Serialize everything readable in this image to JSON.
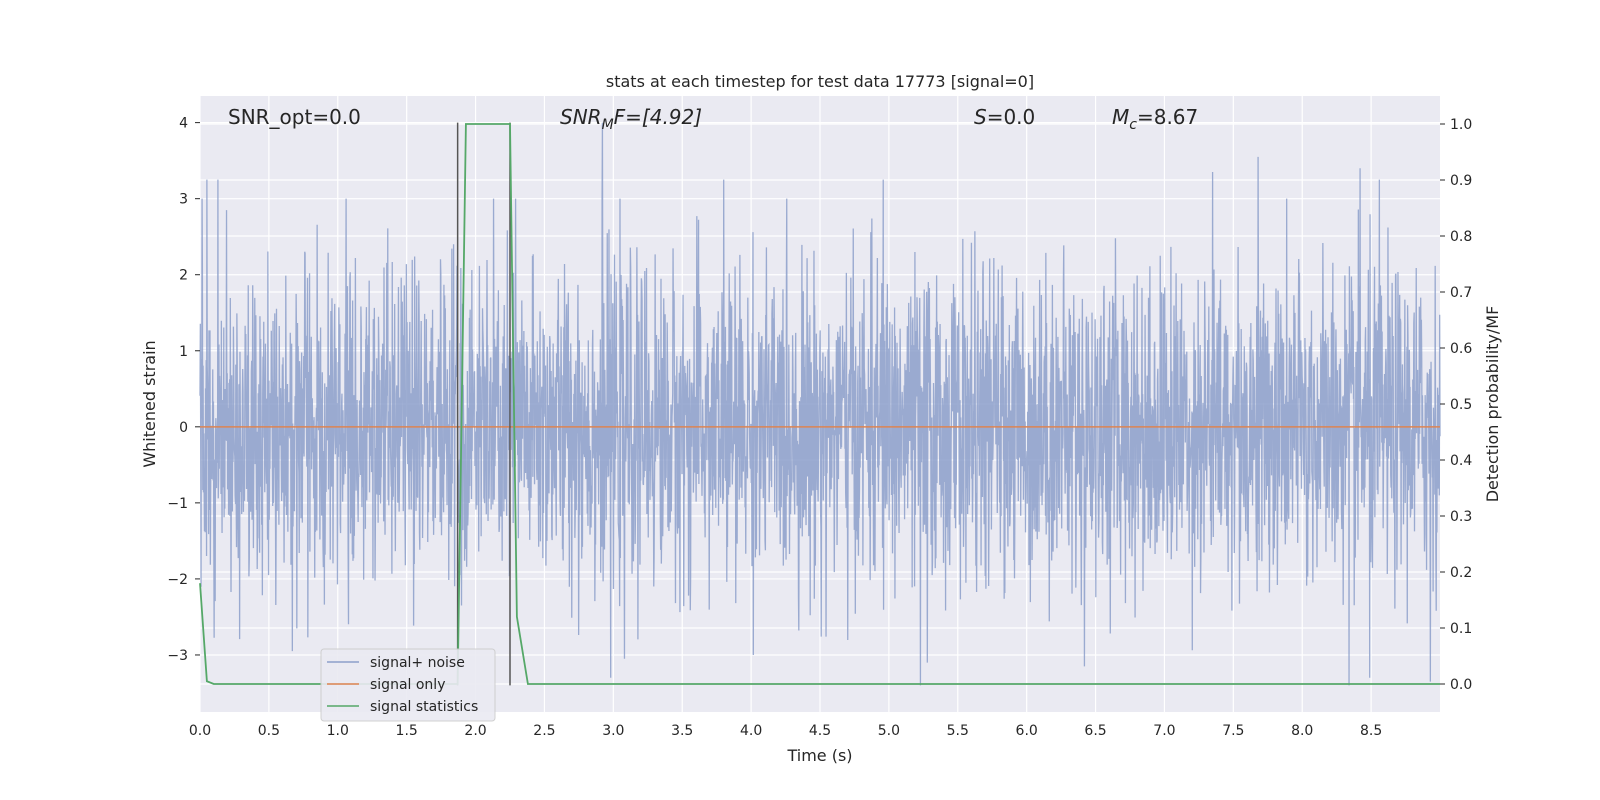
{
  "chart_data": {
    "type": "line",
    "title": "stats at each timestep for test data 17773 [signal=0]",
    "xlabel": "Time (s)",
    "ylabel": "Whitened strain",
    "ylabel_right": "Detection probability/MF",
    "xlim": [
      0.0,
      9.0
    ],
    "ylim": [
      -3.75,
      4.35
    ],
    "ylim_right": [
      -0.05,
      1.05
    ],
    "xticks": [
      "0.0",
      "0.5",
      "1.0",
      "1.5",
      "2.0",
      "2.5",
      "3.0",
      "3.5",
      "4.0",
      "4.5",
      "5.0",
      "5.5",
      "6.0",
      "6.5",
      "7.0",
      "7.5",
      "8.0",
      "8.5"
    ],
    "yticks": [
      "4",
      "3",
      "2",
      "1",
      "0",
      "−1",
      "−2",
      "−3"
    ],
    "yticks_right": [
      "1.0",
      "0.9",
      "0.8",
      "0.7",
      "0.6",
      "0.5",
      "0.4",
      "0.3",
      "0.2",
      "0.1",
      "0.0"
    ],
    "grid": true,
    "legend_position": "lower-left",
    "annotations": {
      "snr_opt": "SNR_opt=0.0",
      "snr_mf_main": "SNR",
      "snr_mf_sub": "M",
      "snr_mf_rest": "F=[4.92]",
      "s_main": "S",
      "s_rest": "=0.0",
      "mc_main": "M",
      "mc_sub": "c",
      "mc_rest": "=8.67"
    },
    "vertical_lines_x": [
      1.87,
      2.25
    ],
    "series": [
      {
        "name": "signal+ noise",
        "color": "#8c9fca",
        "description_of_values": "whitened noise, roughly gaussian between -3.4 and 4.0, sampled densely over 0-9 s",
        "peaks": [
          [
            0.05,
            3.25
          ],
          [
            0.13,
            3.25
          ],
          [
            0.67,
            3.0
          ],
          [
            1.84,
            2.4
          ],
          [
            2.29,
            3.0
          ],
          [
            2.92,
            4.0
          ],
          [
            3.8,
            3.25
          ],
          [
            4.96,
            3.25
          ],
          [
            7.35,
            3.35
          ],
          [
            7.68,
            3.55
          ],
          [
            8.42,
            3.4
          ],
          [
            8.56,
            3.25
          ],
          [
            8.93,
            3.68
          ]
        ],
        "troughs": [
          [
            0.67,
            -2.95
          ],
          [
            2.98,
            -3.3
          ],
          [
            3.08,
            -3.05
          ],
          [
            5.23,
            -3.4
          ],
          [
            5.28,
            -3.1
          ],
          [
            6.42,
            -3.15
          ],
          [
            8.34,
            -3.4
          ],
          [
            8.49,
            -3.3
          ],
          [
            8.93,
            -3.35
          ]
        ]
      },
      {
        "name": "signal only",
        "color": "#dd8452",
        "values_note": "constant zero",
        "x": [
          0.0,
          9.0
        ],
        "y": [
          0.0,
          0.0
        ]
      },
      {
        "name": "signal statistics",
        "color": "#55a868",
        "axis": "right",
        "x": [
          0.0,
          0.05,
          0.1,
          0.15,
          1.87,
          1.93,
          2.0,
          2.25,
          2.3,
          2.38,
          2.45,
          9.0
        ],
        "y": [
          0.18,
          0.005,
          0.0,
          0.0,
          0.0,
          1.0,
          1.0,
          1.0,
          0.12,
          0.0,
          0.0,
          0.0
        ]
      }
    ]
  }
}
